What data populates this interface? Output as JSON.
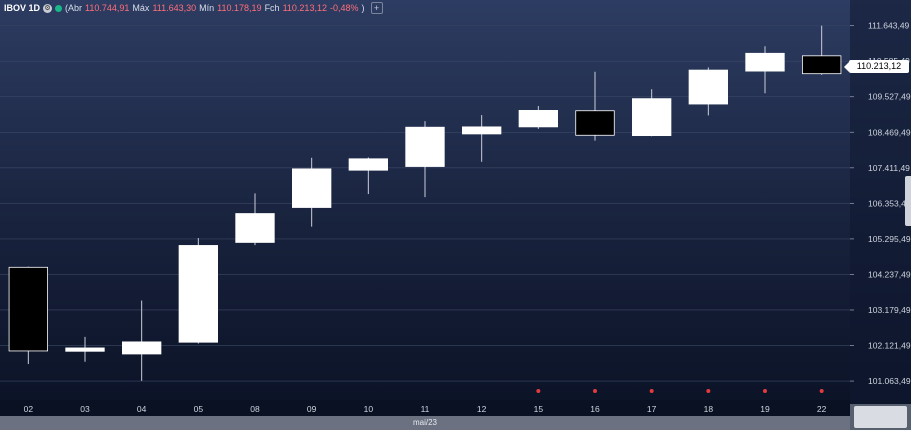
{
  "legend": {
    "symbol": "IBOV 1D",
    "abr_label": "(Abr",
    "abr_value": "110.744,91",
    "max_label": "Máx",
    "max_value": "111.643,30",
    "min_label": "Mín",
    "min_value": "110.178,19",
    "fch_label": "Fch",
    "fch_value": "110.213,12",
    "change": "-0,48%",
    "close_paren": ")"
  },
  "last_price_label": "110.213,12",
  "month_label": "mai/23",
  "colors": {
    "up_candle": "#ffffff",
    "down_candle": "#000000",
    "wick": "#c9ced8",
    "marker": "#e03c3c",
    "grid": "#3a4766",
    "axis_text": "#cfd4de"
  },
  "chart_data": {
    "type": "candlestick",
    "title": "IBOV 1D",
    "ylim": [
      100500,
      111960
    ],
    "y_ticks": [
      111643.49,
      110585.49,
      109527.49,
      108469.49,
      107411.49,
      106353.49,
      105295.49,
      104237.49,
      103179.49,
      102121.49,
      101063.49
    ],
    "y_tick_labels": [
      "111.643,49",
      "110.585,49",
      "109.527,49",
      "108.469,49",
      "107.411,49",
      "106.353,49",
      "105.295,49",
      "104.237,49",
      "103.179,49",
      "102.121,49",
      "101.063,49"
    ],
    "categories": [
      "02",
      "03",
      "04",
      "05",
      "08",
      "09",
      "10",
      "11",
      "12",
      "15",
      "16",
      "17",
      "18",
      "19",
      "22"
    ],
    "open": [
      104450,
      101950,
      101870,
      102220,
      105190,
      106230,
      107340,
      107450,
      108420,
      108630,
      109110,
      108370,
      109310,
      110290,
      110745
    ],
    "high": [
      104470,
      102380,
      103460,
      105320,
      106650,
      107710,
      107720,
      108800,
      108980,
      109250,
      110270,
      109750,
      110400,
      111030,
      111643
    ],
    "low": [
      101570,
      101640,
      101070,
      102180,
      105110,
      105660,
      106630,
      106540,
      107590,
      108570,
      108220,
      108350,
      108970,
      109630,
      110178
    ],
    "close": [
      101960,
      102050,
      102230,
      105100,
      106050,
      107380,
      107680,
      108620,
      108630,
      109120,
      108380,
      109470,
      110320,
      110820,
      110213
    ],
    "markers": [
      "15",
      "16",
      "17",
      "18",
      "19",
      "22"
    ],
    "grid": true
  }
}
